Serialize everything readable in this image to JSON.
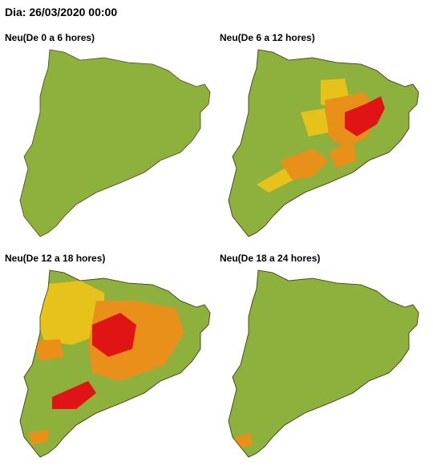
{
  "header": {
    "title": "Dia: 26/03/2020 00:00"
  },
  "panels": [
    {
      "title": "Neu(De 0 a 6 hores)"
    },
    {
      "title": "Neu(De 6 a 12 hores)"
    },
    {
      "title": "Neu(De 12 a 18 hores)"
    },
    {
      "title": "Neu(De 18 a 24 hores)"
    }
  ]
}
